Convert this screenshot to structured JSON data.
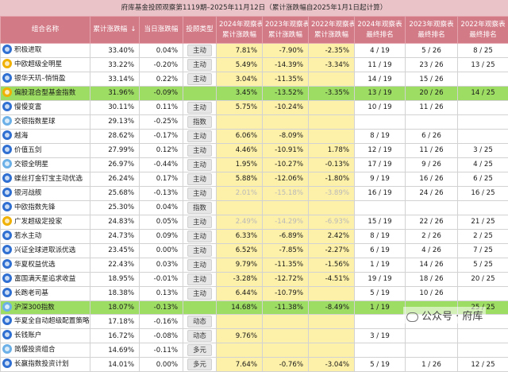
{
  "title": "府库基金投顾观察第1119期–2025年11月12日（累计涨跌幅自2025年1月1日起计算）",
  "headers": {
    "name": "组合名称",
    "cum": "累计涨跌幅",
    "sort_arrow": "↓",
    "day": "当日涨跌幅",
    "type": "投顾类型",
    "y2024": "2024年观察表\n累计涨跌幅",
    "y2023": "2023年观察表\n累计涨跌幅",
    "y2022": "2022年观察表\n累计涨跌幅",
    "r2024": "2024年观察表\n最终排名",
    "r2023": "2023年观察表\n最终排名",
    "r2022": "2022年观察表\n最终排名"
  },
  "rows": [
    {
      "icon": "a",
      "name": "积极进取",
      "cum": "33.40%",
      "day": "0.04%",
      "type": "主动",
      "y2024": "7.81%",
      "y2023": "-7.90%",
      "y2022": "-2.35%",
      "r2024": "4 / 19",
      "r2023": "5 / 26",
      "r2022": "8 / 25",
      "hl": false,
      "muted": false
    },
    {
      "icon": "b",
      "name": "中欧超级全明星",
      "cum": "33.22%",
      "day": "-0.20%",
      "type": "主动",
      "y2024": "5.49%",
      "y2023": "-14.39%",
      "y2022": "-3.34%",
      "r2024": "11 / 19",
      "r2023": "23 / 26",
      "r2022": "13 / 25",
      "hl": false,
      "muted": false
    },
    {
      "icon": "a",
      "name": "银华天玑–悄悄盈",
      "cum": "33.14%",
      "day": "0.22%",
      "type": "主动",
      "y2024": "3.04%",
      "y2023": "-11.35%",
      "y2022": "",
      "r2024": "14 / 19",
      "r2023": "15 / 26",
      "r2022": "",
      "hl": false,
      "muted": false
    },
    {
      "icon": "b",
      "name": "偏股混合型基金指数",
      "cum": "31.96%",
      "day": "-0.09%",
      "type": "",
      "y2024": "3.45%",
      "y2023": "-13.52%",
      "y2022": "-3.35%",
      "r2024": "13 / 19",
      "r2023": "20 / 26",
      "r2022": "14 / 25",
      "hl": true,
      "muted": false
    },
    {
      "icon": "a",
      "name": "慢慢变富",
      "cum": "30.11%",
      "day": "0.11%",
      "type": "主动",
      "y2024": "5.75%",
      "y2023": "-10.24%",
      "y2022": "",
      "r2024": "10 / 19",
      "r2023": "11 / 26",
      "r2022": "",
      "hl": false,
      "muted": false
    },
    {
      "icon": "c",
      "name": "交银指数星球",
      "cum": "29.13%",
      "day": "-0.25%",
      "type": "指数",
      "y2024": "",
      "y2023": "",
      "y2022": "",
      "r2024": "",
      "r2023": "",
      "r2022": "",
      "hl": false,
      "muted": false
    },
    {
      "icon": "a",
      "name": "越海",
      "cum": "28.62%",
      "day": "-0.17%",
      "type": "主动",
      "y2024": "6.06%",
      "y2023": "-8.09%",
      "y2022": "",
      "r2024": "8 / 19",
      "r2023": "6 / 26",
      "r2022": "",
      "hl": false,
      "muted": false
    },
    {
      "icon": "a",
      "name": "价值五剑",
      "cum": "27.99%",
      "day": "0.12%",
      "type": "主动",
      "y2024": "4.46%",
      "y2023": "-10.91%",
      "y2022": "1.78%",
      "r2024": "12 / 19",
      "r2023": "11 / 26",
      "r2022": "3 / 25",
      "hl": false,
      "muted": false
    },
    {
      "icon": "c",
      "name": "交银全明星",
      "cum": "26.97%",
      "day": "-0.44%",
      "type": "主动",
      "y2024": "1.95%",
      "y2023": "-10.27%",
      "y2022": "-0.13%",
      "r2024": "17 / 19",
      "r2023": "9 / 26",
      "r2022": "4 / 25",
      "hl": false,
      "muted": false
    },
    {
      "icon": "a",
      "name": "蝶丝打金钉宝主动优选",
      "cum": "26.24%",
      "day": "0.17%",
      "type": "主动",
      "y2024": "5.88%",
      "y2023": "-12.06%",
      "y2022": "-1.80%",
      "r2024": "9 / 19",
      "r2023": "16 / 26",
      "r2022": "6 / 25",
      "hl": false,
      "muted": false
    },
    {
      "icon": "a",
      "name": "银河战舰",
      "cum": "25.68%",
      "day": "-0.13%",
      "type": "主动",
      "y2024": "2.01%",
      "y2023": "-15.18%",
      "y2022": "-3.89%",
      "r2024": "16 / 19",
      "r2023": "24 / 26",
      "r2022": "16 / 25",
      "hl": false,
      "muted": true
    },
    {
      "icon": "a",
      "name": "中欧指数先锋",
      "cum": "25.30%",
      "day": "0.04%",
      "type": "指数",
      "y2024": "",
      "y2023": "",
      "y2022": "",
      "r2024": "",
      "r2023": "",
      "r2022": "",
      "hl": false,
      "muted": false
    },
    {
      "icon": "b",
      "name": "广发超级定投家",
      "cum": "24.83%",
      "day": "0.05%",
      "type": "主动",
      "y2024": "2.49%",
      "y2023": "-14.29%",
      "y2022": "-6.93%",
      "r2024": "15 / 19",
      "r2023": "22 / 26",
      "r2022": "21 / 25",
      "hl": false,
      "muted": true
    },
    {
      "icon": "a",
      "name": "若水主动",
      "cum": "24.73%",
      "day": "0.09%",
      "type": "主动",
      "y2024": "6.33%",
      "y2023": "-6.89%",
      "y2022": "2.42%",
      "r2024": "8 / 19",
      "r2023": "2 / 26",
      "r2022": "2 / 25",
      "hl": false,
      "muted": false
    },
    {
      "icon": "a",
      "name": "兴证全球进取派优选",
      "cum": "23.45%",
      "day": "0.00%",
      "type": "主动",
      "y2024": "6.52%",
      "y2023": "-7.85%",
      "y2022": "-2.27%",
      "r2024": "6 / 19",
      "r2023": "4 / 26",
      "r2022": "7 / 25",
      "hl": false,
      "muted": false
    },
    {
      "icon": "a",
      "name": "华夏权益优选",
      "cum": "22.43%",
      "day": "0.03%",
      "type": "主动",
      "y2024": "9.79%",
      "y2023": "-11.35%",
      "y2022": "-1.56%",
      "r2024": "1 / 19",
      "r2023": "14 / 26",
      "r2022": "5 / 25",
      "hl": false,
      "muted": false
    },
    {
      "icon": "a",
      "name": "富国满天星追求收益",
      "cum": "18.95%",
      "day": "-0.01%",
      "type": "主动",
      "y2024": "-3.28%",
      "y2023": "-12.72%",
      "y2022": "-4.51%",
      "r2024": "19 / 19",
      "r2023": "18 / 26",
      "r2022": "20 / 25",
      "hl": false,
      "muted": false
    },
    {
      "icon": "a",
      "name": "长跑老司基",
      "cum": "18.38%",
      "day": "0.13%",
      "type": "主动",
      "y2024": "6.44%",
      "y2023": "-10.79%",
      "y2022": "",
      "r2024": "5 / 19",
      "r2023": "10 / 26",
      "r2022": "",
      "hl": false,
      "muted": false
    },
    {
      "icon": "c",
      "name": "沪深300指数",
      "cum": "18.07%",
      "day": "-0.13%",
      "type": "",
      "y2024": "14.68%",
      "y2023": "-11.38%",
      "y2022": "-8.49%",
      "r2024": "1 / 19",
      "r2023": "",
      "r2022": "25 / 25",
      "hl": true,
      "muted": false
    },
    {
      "icon": "a",
      "name": "华夏全自动超级配置策略",
      "cum": "17.18%",
      "day": "-0.16%",
      "type": "动态",
      "y2024": "",
      "y2023": "",
      "y2022": "",
      "r2024": "",
      "r2023": "",
      "r2022": "",
      "hl": false,
      "muted": false
    },
    {
      "icon": "a",
      "name": "长钱账户",
      "cum": "16.72%",
      "day": "-0.08%",
      "type": "动态",
      "y2024": "9.76%",
      "y2023": "",
      "y2022": "",
      "r2024": "3 / 19",
      "r2023": "",
      "r2022": "",
      "hl": false,
      "muted": false
    },
    {
      "icon": "c",
      "name": "简慢投资组合",
      "cum": "14.69%",
      "day": "-0.11%",
      "type": "多元",
      "y2024": "",
      "y2023": "",
      "y2022": "",
      "r2024": "",
      "r2023": "",
      "r2022": "",
      "hl": false,
      "muted": false
    },
    {
      "icon": "a",
      "name": "长赢指数投资计划",
      "cum": "14.01%",
      "day": "0.00%",
      "type": "多元",
      "y2024": "7.64%",
      "y2023": "-0.76%",
      "y2022": "-3.04%",
      "r2024": "5 / 19",
      "r2023": "1 / 26",
      "r2022": "12 / 25",
      "hl": false,
      "muted": false
    }
  ],
  "watermark": "公众号 · 府库"
}
